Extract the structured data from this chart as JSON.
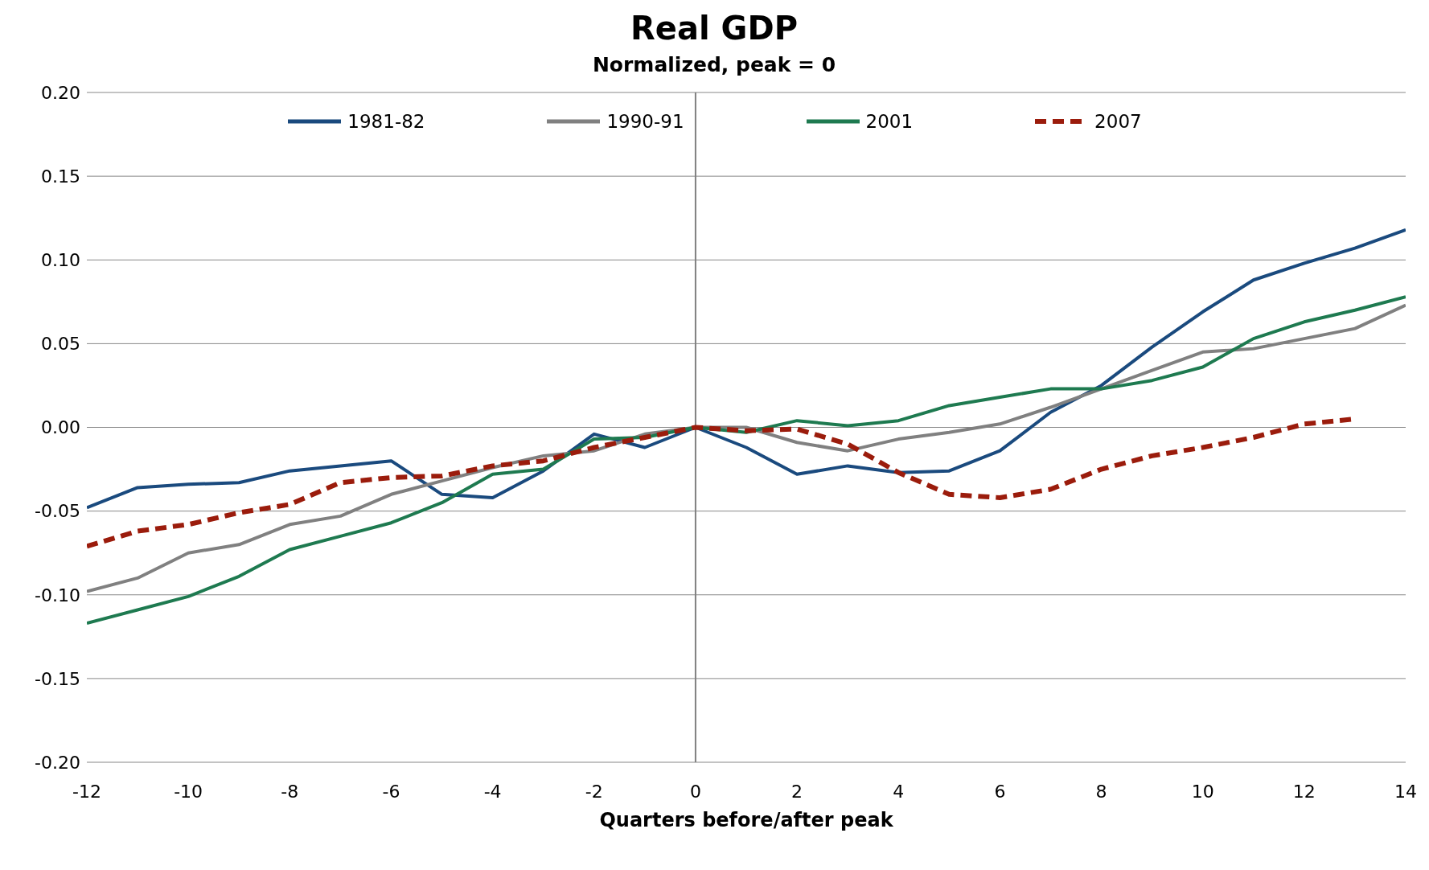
{
  "chart_data": {
    "type": "line",
    "title": "Real GDP",
    "subtitle": "Normalized, peak = 0",
    "xlabel": "Quarters before/after peak",
    "x": [
      -12,
      -11,
      -10,
      -9,
      -8,
      -7,
      -6,
      -5,
      -4,
      -3,
      -2,
      -1,
      0,
      1,
      2,
      3,
      4,
      5,
      6,
      7,
      8,
      9,
      10,
      11,
      12,
      13,
      14
    ],
    "series": [
      {
        "name": "1981-82",
        "color": "#1a4a7e",
        "line_style": "solid",
        "values": [
          -0.048,
          -0.036,
          -0.034,
          -0.033,
          -0.026,
          -0.023,
          -0.02,
          -0.04,
          -0.042,
          -0.026,
          -0.004,
          -0.012,
          0,
          -0.012,
          -0.028,
          -0.023,
          -0.027,
          -0.026,
          -0.014,
          0.009,
          0.025,
          0.048,
          0.069,
          0.088,
          0.098,
          0.107,
          0.118
        ]
      },
      {
        "name": "1990-91",
        "color": "#808080",
        "line_style": "solid",
        "values": [
          -0.098,
          -0.09,
          -0.075,
          -0.07,
          -0.058,
          -0.053,
          -0.04,
          -0.032,
          -0.024,
          -0.017,
          -0.014,
          -0.004,
          0,
          0,
          -0.009,
          -0.014,
          -0.007,
          -0.003,
          0.002,
          0.012,
          0.023,
          0.034,
          0.045,
          0.047,
          0.053,
          0.059,
          0.073
        ]
      },
      {
        "name": "2001",
        "color": "#1e7a50",
        "line_style": "solid",
        "values": [
          -0.117,
          -0.109,
          -0.101,
          -0.089,
          -0.073,
          -0.065,
          -0.057,
          -0.045,
          -0.028,
          -0.025,
          -0.007,
          -0.006,
          0,
          -0.003,
          0.004,
          0.001,
          0.004,
          0.013,
          0.018,
          0.023,
          0.023,
          0.028,
          0.036,
          0.053,
          0.063,
          0.07,
          0.078
        ]
      },
      {
        "name": "2007",
        "color": "#9b1c0c",
        "line_style": "dashed",
        "values": [
          -0.071,
          -0.062,
          -0.058,
          -0.051,
          -0.046,
          -0.033,
          -0.03,
          -0.029,
          -0.023,
          -0.02,
          -0.012,
          -0.006,
          0,
          -0.002,
          -0.001,
          -0.01,
          -0.027,
          -0.04,
          -0.042,
          -0.037,
          -0.025,
          -0.017,
          -0.012,
          -0.006,
          0.002,
          0.005,
          null
        ]
      }
    ],
    "xlim": [
      -12,
      14
    ],
    "xticks": [
      -12,
      -10,
      -8,
      -6,
      -4,
      -2,
      0,
      2,
      4,
      6,
      8,
      10,
      12,
      14
    ],
    "ylim": [
      -0.2,
      0.2
    ],
    "yticks": [
      {
        "value": -0.2,
        "label": "-0.20"
      },
      {
        "value": -0.15,
        "label": "-0.15"
      },
      {
        "value": -0.1,
        "label": "-0.10"
      },
      {
        "value": -0.05,
        "label": "-0.05"
      },
      {
        "value": 0,
        "label": "0.00"
      },
      {
        "value": 0.05,
        "label": "0.05"
      },
      {
        "value": 0.1,
        "label": "0.10"
      },
      {
        "value": 0.15,
        "label": "0.15"
      },
      {
        "value": 0.2,
        "label": "0.20"
      }
    ],
    "ref_lines": [
      {
        "axis": "x",
        "value": 0,
        "color": "#808080"
      }
    ],
    "grid": "y",
    "legend": "top",
    "marker": "none"
  }
}
